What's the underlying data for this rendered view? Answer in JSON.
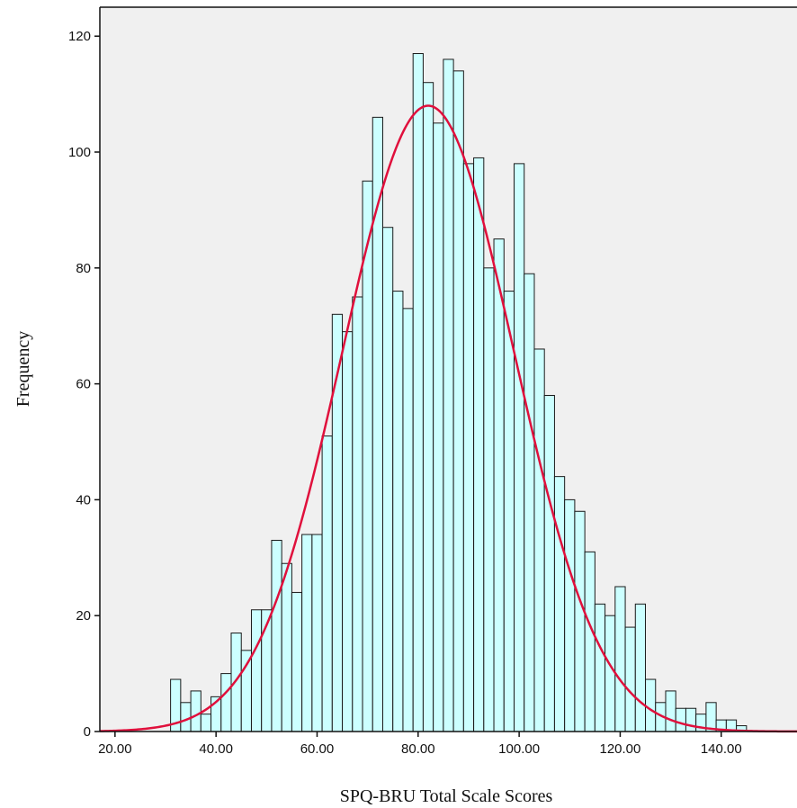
{
  "chart_data": {
    "type": "bar",
    "subtype": "histogram",
    "title": "",
    "xlabel": "SPQ-BRU Total Scale Scores",
    "ylabel": "Frequency",
    "xlim": [
      17,
      155
    ],
    "ylim": [
      0,
      125
    ],
    "bin_width": 2,
    "bin_start": 31,
    "xticks": [
      20,
      40,
      60,
      80,
      100,
      120,
      140
    ],
    "xtick_labels": [
      "20.00",
      "40.00",
      "60.00",
      "80.00",
      "100.00",
      "120.00",
      "140.00"
    ],
    "yticks": [
      0,
      20,
      40,
      60,
      80,
      100,
      120
    ],
    "ytick_labels": [
      "0",
      "20",
      "40",
      "60",
      "80",
      "100",
      "120"
    ],
    "values": [
      9,
      5,
      7,
      3,
      6,
      10,
      17,
      14,
      21,
      21,
      33,
      29,
      24,
      34,
      34,
      51,
      72,
      69,
      75,
      95,
      106,
      87,
      76,
      73,
      117,
      112,
      105,
      116,
      114,
      98,
      99,
      80,
      85,
      76,
      98,
      79,
      66,
      58,
      44,
      40,
      38,
      31,
      22,
      20,
      25,
      18,
      22,
      9,
      5,
      7,
      4,
      4,
      3,
      5,
      2,
      2,
      1,
      0
    ],
    "normal_curve": {
      "mean": 82,
      "sd": 17,
      "peak": 108
    },
    "grid": false,
    "legend": "none",
    "colors": {
      "bar_fill": "#ccffff",
      "bar_stroke": "#1a1a1a",
      "curve": "#e0103c",
      "plot_background": "#f0f0f0",
      "frame": "#111111"
    }
  }
}
